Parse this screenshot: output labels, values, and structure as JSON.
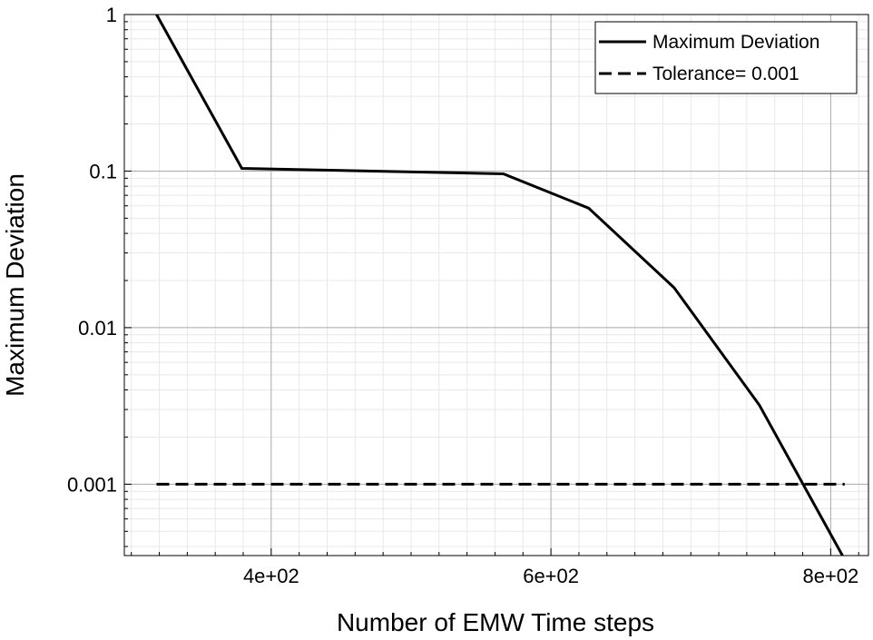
{
  "chart_data": {
    "type": "line",
    "title": "",
    "xlabel": "Number of EMW Time steps",
    "ylabel": "Maximum Deviation",
    "xscale": "linear",
    "yscale": "log",
    "xlim": [
      295,
      827
    ],
    "ylim": [
      0.00035,
      1
    ],
    "x_ticks": [
      400,
      600,
      800
    ],
    "x_tick_labels": [
      "4e+02",
      "6e+02",
      "8e+02"
    ],
    "y_ticks": [
      1,
      0.1,
      0.01,
      0.001
    ],
    "y_tick_labels": [
      "1",
      "0.1",
      "0.01",
      "0.001"
    ],
    "grid": true,
    "legend_position": "top-right",
    "series": [
      {
        "name": "Maximum Deviation",
        "style": "solid",
        "color": "#000000",
        "x": [
          318,
          379,
          566,
          627,
          688,
          749,
          810
        ],
        "y": [
          1.0,
          0.104,
          0.096,
          0.058,
          0.018,
          0.0032,
          0.00033
        ]
      },
      {
        "name": "Tolerance= 0.001",
        "style": "dashed",
        "color": "#000000",
        "x": [
          318,
          810
        ],
        "y": [
          0.001,
          0.001
        ]
      }
    ]
  }
}
